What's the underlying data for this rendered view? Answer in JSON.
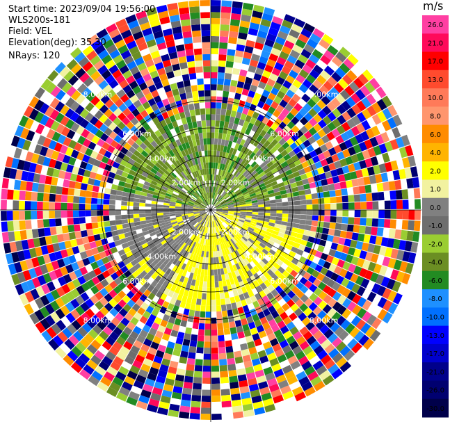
{
  "info": {
    "start_time": "Start time: 2023/09/04 19:56:00",
    "instrument": "WLS200s-181",
    "field": "Field: VEL",
    "elevation": "Elevation(deg): 35.30",
    "nrays": "NRays: 120"
  },
  "colorbar": {
    "title": "m/s",
    "ticks": [
      "26.0",
      "21.0",
      "17.0",
      "13.0",
      "10.0",
      "8.0",
      "6.0",
      "4.0",
      "2.0",
      "1.0",
      "0.0",
      "-1.0",
      "-2.0",
      "-4.0",
      "-6.0",
      "-8.0",
      "-10.0",
      "-13.0",
      "-17.0",
      "-21.0",
      "-26.0",
      "-30.0"
    ],
    "colors": [
      "#ff3fa2",
      "#ff0a5a",
      "#ff0000",
      "#ff4b2e",
      "#ff7a59",
      "#ff966e",
      "#ff8c00",
      "#ffb400",
      "#ffff00",
      "#f2f2a0",
      "#808080",
      "#6e6e6e",
      "#9acd32",
      "#6b8e23",
      "#228b22",
      "#1e90ff",
      "#0070ff",
      "#0000ff",
      "#0000cd",
      "#00008b",
      "#000070",
      "#00004a"
    ]
  },
  "chart_data": {
    "type": "ppi",
    "field": "VEL",
    "units": "m/s",
    "nrays": 120,
    "ring_labels": [
      "2.00km",
      "4.00km",
      "6.00km",
      "8.00km"
    ],
    "vmin": -30.0,
    "vmax": 26.0
  }
}
